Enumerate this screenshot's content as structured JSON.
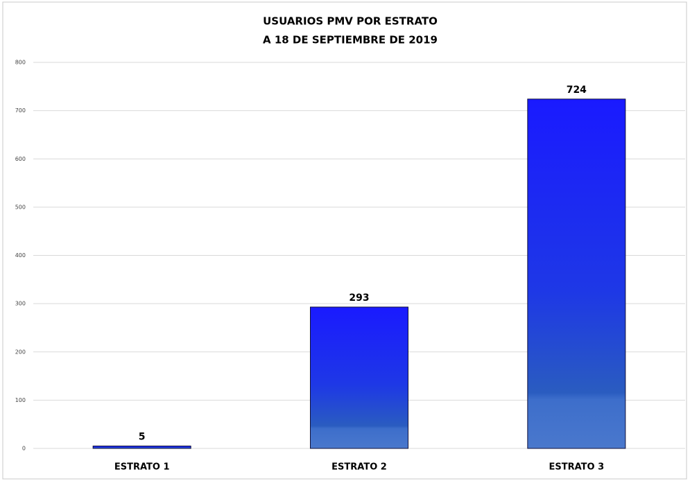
{
  "chart_data": {
    "type": "bar",
    "title": "USUARIOS PMV POR ESTRATO",
    "subtitle": "A 18 DE SEPTIEMBRE DE 2019",
    "categories": [
      "ESTRATO 1",
      "ESTRATO 2",
      "ESTRATO 3"
    ],
    "values": [
      5,
      293,
      724
    ],
    "color": "#1a1aff",
    "ylim": [
      0,
      800
    ],
    "yticks": [
      0,
      100,
      200,
      300,
      400,
      500,
      600,
      700,
      800
    ],
    "grid": true
  }
}
